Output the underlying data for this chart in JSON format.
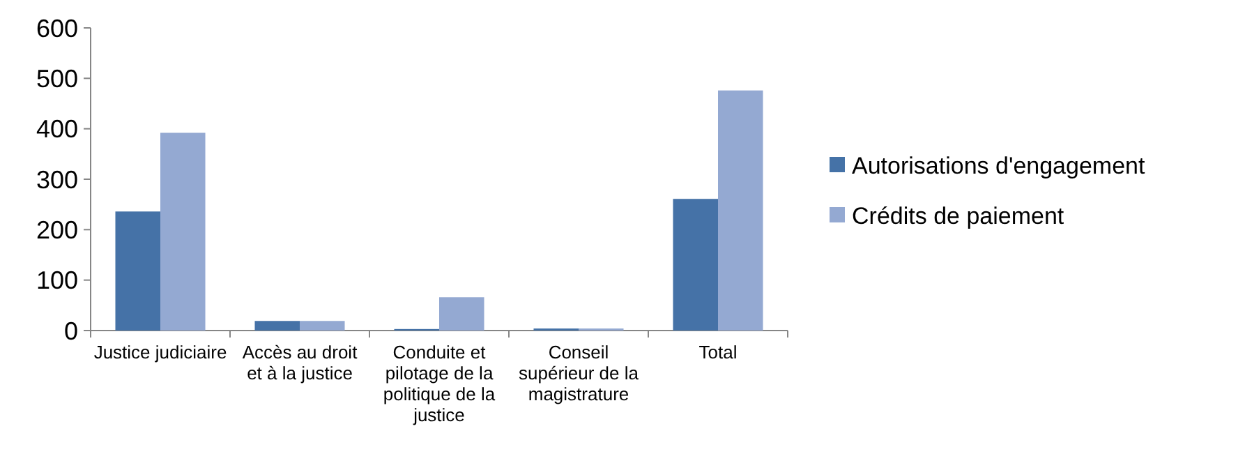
{
  "chart_data": {
    "type": "bar",
    "categories": [
      "Justice judiciaire",
      "Accès au droit et à la justice",
      "Conduite et pilotage de la politique de la justice",
      "Conseil supérieur de la magistrature",
      "Total"
    ],
    "series": [
      {
        "name": "Autorisations d'engagement",
        "color": "#4572a7",
        "values": [
          236,
          19,
          3,
          4,
          261
        ]
      },
      {
        "name": "Crédits de paiement",
        "color": "#94a9d2",
        "values": [
          392,
          19,
          66,
          4,
          476
        ]
      }
    ],
    "ylim": [
      0,
      600
    ],
    "yticks": [
      0,
      100,
      200,
      300,
      400,
      500,
      600
    ],
    "legend": "right",
    "grid": false
  }
}
